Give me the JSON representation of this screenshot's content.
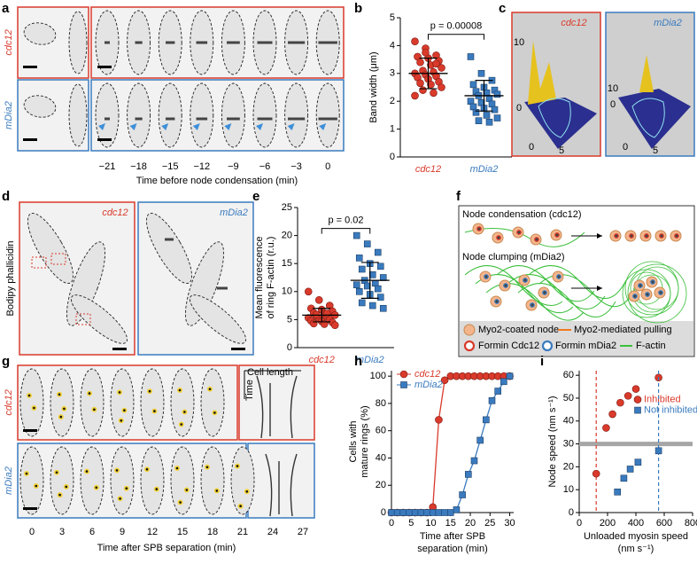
{
  "panels": {
    "a": {
      "label": "a",
      "rows": [
        "cdc12",
        "mDia2"
      ],
      "times": [
        {
          "value": -21,
          "label": "−21"
        },
        {
          "value": -18,
          "label": "−18"
        },
        {
          "value": -15,
          "label": "−15"
        },
        {
          "value": -12,
          "label": "−12"
        },
        {
          "value": -9,
          "label": "−9"
        },
        {
          "value": -6,
          "label": "−6"
        },
        {
          "value": -3,
          "label": "−3"
        },
        0
      ],
      "xlabel": "Time before node condensation (min)"
    },
    "c": {
      "label": "c",
      "plots": [
        {
          "title": "cdc12",
          "ticks": [
            "10",
            "0",
            "0",
            "5"
          ]
        },
        {
          "title": "mDia2",
          "ticks": [
            "10",
            "0",
            "0",
            "5"
          ]
        }
      ]
    },
    "d": {
      "label": "d",
      "ylabel": "Bodipy phallicidin",
      "titles": [
        "cdc12",
        "mDia2"
      ]
    },
    "f": {
      "label": "f",
      "rows": [
        "Node condensation (cdc12)",
        "Node clumping (mDia2)"
      ],
      "legend": [
        "Myo2-coated node",
        "Myo2-mediated pulling",
        "Formin Cdc12",
        "Formin mDia2",
        "F-actin"
      ]
    },
    "g": {
      "label": "g",
      "rows": [
        "cdc12",
        "mDia2"
      ],
      "kymograph": [
        "Cell length",
        "Time"
      ],
      "times": [
        0,
        3,
        6,
        9,
        12,
        15,
        18,
        21,
        24,
        27
      ],
      "xlabel": "Time after SPB separation (min)"
    }
  },
  "chart_data": [
    {
      "type": "strip",
      "label": "b",
      "ylabel": [
        "Band width (μm)"
      ],
      "annotation": "p = 0.00008",
      "ylim": [
        0,
        5
      ],
      "yticks": [
        0,
        1,
        2,
        3,
        4,
        5
      ],
      "groups": [
        {
          "name": "cdc12",
          "color": "#d93a2b",
          "values": [
            4.15,
            3.9,
            3.65,
            3.6,
            3.55,
            3.45,
            3.4,
            3.3,
            3.2,
            3.1,
            3.05,
            3.0,
            2.95,
            2.9,
            2.85,
            2.8,
            2.7,
            2.65,
            2.6,
            2.5,
            2.4,
            2.3,
            2.2,
            3.75,
            3.35
          ],
          "mean": 3.0,
          "sd": 0.55
        },
        {
          "name": "mDia2",
          "color": "#3a7bbf",
          "values": [
            3.6,
            3.0,
            2.75,
            2.6,
            2.5,
            2.4,
            2.35,
            2.3,
            2.25,
            2.2,
            2.1,
            2.0,
            1.95,
            1.9,
            1.8,
            1.75,
            1.7,
            1.6,
            1.5,
            1.4,
            1.3,
            1.25
          ],
          "mean": 2.2,
          "sd": 0.55
        }
      ]
    },
    {
      "type": "strip",
      "label": "e",
      "ylabel": [
        "Mean fluorescence",
        "of ring F-actin (r.u.)"
      ],
      "annotation": "p = 0.02",
      "ylim": [
        0,
        25
      ],
      "yticks": [
        0,
        5,
        10,
        15,
        20,
        25
      ],
      "groups": [
        {
          "name": "cdc12",
          "color": "#d93a2b",
          "values": [
            10,
            8.5,
            7.5,
            7,
            6.8,
            6.5,
            6.2,
            6,
            5.8,
            5.6,
            5.5,
            5.3,
            5.2,
            5,
            4.8,
            4.7,
            4.5,
            4.3,
            4.2,
            4,
            5.9,
            6.1
          ],
          "mean": 5.8,
          "sd": 1.2
        },
        {
          "name": "mDia2",
          "color": "#3a7bbf",
          "values": [
            20,
            18.5,
            17,
            16,
            15,
            14.5,
            14,
            13,
            12.5,
            12,
            11.5,
            11.2,
            11,
            10.5,
            10,
            9.5,
            9,
            8,
            7.5,
            7
          ],
          "mean": 12,
          "sd": 3.2
        }
      ]
    },
    {
      "type": "line",
      "label": "h",
      "ylabel": [
        "Cells with",
        "mature rings (%)"
      ],
      "xlabel": [
        "Time after SPB",
        "separation (min)"
      ],
      "xlim": [
        0,
        31
      ],
      "xticks": [
        0,
        5,
        10,
        15,
        20,
        25,
        30
      ],
      "ylim": [
        0,
        104
      ],
      "yticks": [
        0,
        20,
        40,
        60,
        80,
        100
      ],
      "x": [
        0,
        1.5,
        3,
        4.5,
        6,
        7.5,
        9,
        10.5,
        12,
        13.5,
        15,
        16.5,
        18,
        19.5,
        21,
        22.5,
        24,
        25.5,
        27,
        28.5,
        30
      ],
      "series": [
        {
          "name": "cdc12",
          "color": "#d93a2b",
          "marker": "circle",
          "values": [
            0,
            0,
            0,
            0,
            0,
            0,
            0,
            4,
            68,
            97,
            100,
            100,
            100,
            100,
            100,
            100,
            100,
            100,
            100,
            100,
            100
          ]
        },
        {
          "name": "mDia2",
          "color": "#3a7bbf",
          "marker": "square",
          "values": [
            0,
            0,
            0,
            0,
            0,
            0,
            0,
            0,
            0,
            0,
            0,
            2,
            13,
            28,
            38,
            53,
            68,
            82,
            89,
            96,
            100
          ]
        }
      ]
    },
    {
      "type": "scatter",
      "label": "i",
      "ylabel": [
        "Node speed (nm s⁻¹)"
      ],
      "xlabel": [
        "Unloaded myosin speed",
        "(nm s⁻¹)"
      ],
      "xlim": [
        0,
        800
      ],
      "xticks": [
        0,
        200,
        400,
        600,
        800
      ],
      "ylim": [
        0,
        62
      ],
      "yticks": [
        0,
        10,
        20,
        30,
        40,
        50,
        60
      ],
      "hband": 30,
      "series": [
        {
          "name": "Inhibited",
          "color": "#d93a2b",
          "marker": "circle",
          "vline": 120,
          "x": [
            120,
            190,
            235,
            290,
            345,
            400,
            560
          ],
          "values": [
            17,
            37,
            43,
            48,
            51,
            54,
            59
          ]
        },
        {
          "name": "Not inhibited",
          "color": "#3a7bbf",
          "marker": "square",
          "vline": 560,
          "x": [
            270,
            315,
            360,
            415,
            560
          ],
          "values": [
            9,
            15,
            19,
            22,
            27
          ]
        }
      ]
    }
  ]
}
